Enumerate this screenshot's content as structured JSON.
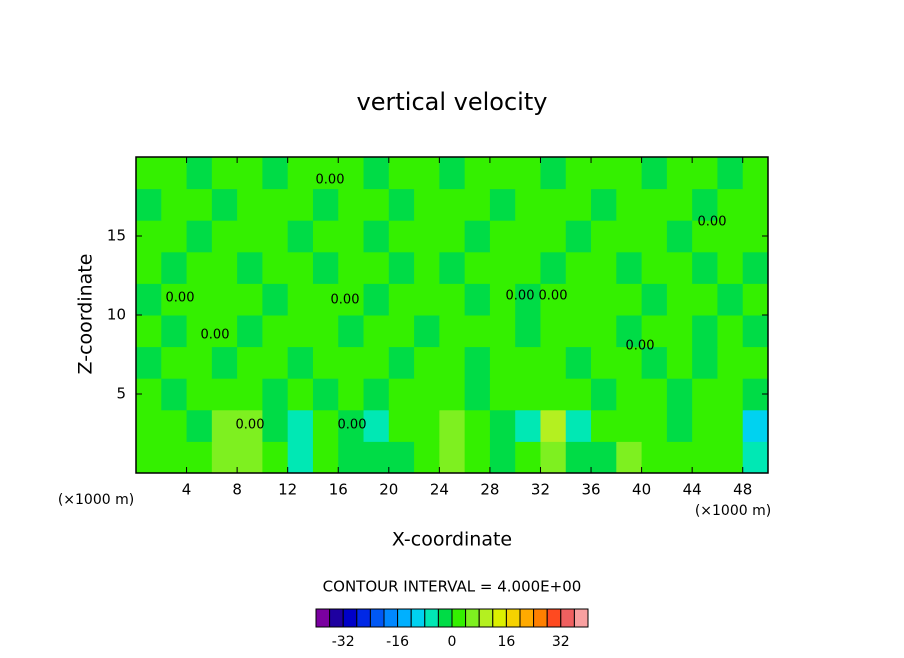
{
  "chart_data": {
    "type": "contour",
    "title": "vertical velocity",
    "x_label": "X-coordinate",
    "y_label": "Z-coordinate",
    "x_unit": "(×1000 m)",
    "y_unit": "(×1000 m)",
    "contour_interval_label": "CONTOUR INTERVAL = 4.000E+00",
    "contour_label": "0.00",
    "xlim": [
      0,
      50
    ],
    "ylim": [
      0,
      20
    ],
    "xticks": [
      4,
      8,
      12,
      16,
      20,
      24,
      28,
      32,
      36,
      40,
      44,
      48
    ],
    "yticks": [
      5,
      10,
      15
    ],
    "x": [
      1,
      3,
      5,
      7,
      9,
      11,
      13,
      15,
      17,
      19,
      21,
      23,
      25,
      27,
      29,
      31,
      33,
      35,
      37,
      39,
      41,
      43,
      45,
      47,
      49
    ],
    "z": [
      1,
      3,
      5,
      7,
      9,
      11,
      13,
      15,
      17,
      19
    ],
    "values": [
      [
        1,
        1,
        1,
        5,
        6,
        1,
        -5,
        1,
        -1,
        -4,
        -1,
        1,
        5,
        1,
        -1,
        1,
        7,
        -4,
        -1,
        5,
        1,
        1,
        1,
        1,
        -6
      ],
      [
        1,
        1,
        -1,
        6,
        7,
        -1,
        -5,
        1,
        -1,
        -5,
        1,
        1,
        6,
        1,
        -1,
        -5,
        8,
        -5,
        1,
        1,
        1,
        -1,
        1,
        1,
        -9
      ],
      [
        1,
        -1,
        1,
        1,
        1,
        -1,
        1,
        -1,
        1,
        -1,
        1,
        1,
        1,
        -1,
        1,
        1,
        1,
        1,
        -1,
        1,
        1,
        -1,
        1,
        1,
        -1
      ],
      [
        -1,
        1,
        1,
        -1,
        1,
        1,
        -1,
        1,
        1,
        1,
        -1,
        1,
        1,
        -1,
        1,
        1,
        1,
        -1,
        1,
        1,
        -1,
        1,
        -1,
        1,
        1
      ],
      [
        1,
        -1,
        1,
        1,
        -1,
        1,
        1,
        1,
        -1,
        1,
        1,
        -1,
        1,
        1,
        1,
        -1,
        1,
        1,
        1,
        -1,
        1,
        1,
        -1,
        1,
        -1
      ],
      [
        -1,
        1,
        1,
        1,
        1,
        -1,
        1,
        1,
        1,
        -1,
        1,
        1,
        1,
        -1,
        1,
        -1,
        1,
        1,
        1,
        1,
        -1,
        1,
        1,
        -1,
        1
      ],
      [
        1,
        -1,
        1,
        1,
        -1,
        1,
        1,
        -1,
        1,
        1,
        -1,
        1,
        -1,
        1,
        1,
        1,
        -1,
        1,
        1,
        -1,
        1,
        1,
        -1,
        1,
        -1
      ],
      [
        1,
        1,
        -1,
        1,
        1,
        1,
        -1,
        1,
        1,
        -1,
        1,
        1,
        1,
        -1,
        1,
        1,
        1,
        -1,
        1,
        1,
        1,
        -1,
        1,
        1,
        1
      ],
      [
        -1,
        1,
        1,
        -1,
        1,
        1,
        1,
        -1,
        1,
        1,
        -1,
        1,
        1,
        1,
        -1,
        1,
        1,
        1,
        -1,
        1,
        1,
        1,
        -1,
        1,
        1
      ],
      [
        1,
        1,
        -1,
        1,
        1,
        -1,
        1,
        1,
        1,
        -1,
        1,
        1,
        -1,
        1,
        1,
        1,
        -1,
        1,
        1,
        1,
        -1,
        1,
        1,
        -1,
        1
      ]
    ],
    "colorbar": {
      "levels": [
        -40,
        -36,
        -32,
        -28,
        -24,
        -20,
        -16,
        -12,
        -8,
        -4,
        0,
        4,
        8,
        12,
        16,
        20,
        24,
        28,
        32,
        36,
        40
      ],
      "colors": [
        "#7a00a0",
        "#1e00a0",
        "#0000c8",
        "#0028e6",
        "#0058f5",
        "#0088ff",
        "#00b0ff",
        "#00d2f0",
        "#00e8b4",
        "#00dc46",
        "#34f000",
        "#7ef020",
        "#b4f020",
        "#dcf000",
        "#f5d200",
        "#ffaa00",
        "#ff8000",
        "#ff4a20",
        "#f06060",
        "#f8a0a0"
      ],
      "ticks": [
        -32,
        -16,
        0,
        16,
        32
      ]
    }
  }
}
